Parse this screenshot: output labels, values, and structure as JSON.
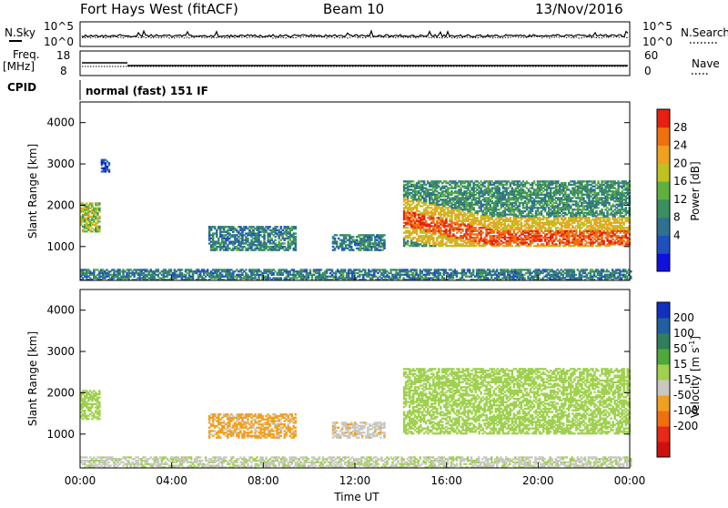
{
  "header": {
    "station": "Fort Hays West (fitACF)",
    "beam": "Beam 10",
    "date": "13/Nov/2016"
  },
  "top_panels": {
    "nsky_label": "N.Sky",
    "nsearch_label": "N.Search",
    "nsky_ticks": [
      "10^5",
      "10^0"
    ],
    "nsearch_ticks": [
      "10^5",
      "10^0"
    ],
    "freq_label": "Freq.",
    "freq_unit": "[MHz]",
    "freq_ticks": [
      "18",
      "8"
    ],
    "nave_label": "Nave",
    "nave_ticks": [
      "60",
      "0"
    ],
    "cpid_label": "CPID",
    "cpid_text": "normal (fast) 151 IF"
  },
  "axes": {
    "xlabel": "Time UT",
    "ylabel": "Slant Range [km]",
    "xticks": [
      "00:00",
      "04:00",
      "08:00",
      "12:00",
      "16:00",
      "20:00",
      "00:00"
    ],
    "xlim_hours": [
      0,
      24
    ],
    "ylim_km": [
      180,
      4500
    ],
    "yticks": [
      1000,
      2000,
      3000,
      4000
    ]
  },
  "power_scale": {
    "label": "Power [dB]",
    "ticks": [
      "28",
      "24",
      "20",
      "16",
      "12",
      "8",
      "4"
    ],
    "range": [
      0,
      32
    ],
    "colors": [
      "#1010e0",
      "#2050c0",
      "#307090",
      "#3a9060",
      "#60b040",
      "#c0c020",
      "#f0a020",
      "#f07010",
      "#e82010"
    ]
  },
  "velocity_scale": {
    "label": "Velocity [m s",
    "label_sup": "-1",
    "label_end": "]",
    "ticks": [
      "200",
      "100",
      "50",
      "15",
      "-15",
      "-50",
      "-100",
      "-200"
    ],
    "colors": [
      "#1030c0",
      "#2060a0",
      "#2f7f5a",
      "#4fa83a",
      "#a0d050",
      "#c8c8c0",
      "#f0a020",
      "#f07010",
      "#e82818",
      "#d01010"
    ]
  },
  "chart_data": [
    {
      "type": "heatmap",
      "title": "Power",
      "xlabel": "Time UT",
      "ylabel": "Slant Range [km]",
      "xlim": [
        0,
        24
      ],
      "ylim": [
        180,
        4500
      ],
      "colorbar": "Power [dB]",
      "regions": [
        {
          "t": [
            0.0,
            0.8
          ],
          "r": [
            1350,
            2050
          ],
          "level_db": 18
        },
        {
          "t": [
            0.9,
            1.3
          ],
          "r": [
            2800,
            3100
          ],
          "level_db": 6
        },
        {
          "t": [
            5.6,
            9.4
          ],
          "r": [
            900,
            1500
          ],
          "level_db": 10
        },
        {
          "t": [
            11.0,
            13.3
          ],
          "r": [
            900,
            1300
          ],
          "level_db": 10
        },
        {
          "t": [
            14.1,
            24.0
          ],
          "r": [
            1000,
            2600
          ],
          "level_db": 26
        },
        {
          "t": [
            0.0,
            24.0
          ],
          "r": [
            180,
            450
          ],
          "level_db": 10
        }
      ]
    },
    {
      "type": "heatmap",
      "title": "Velocity",
      "xlabel": "Time UT",
      "ylabel": "Slant Range [km]",
      "xlim": [
        0,
        24
      ],
      "ylim": [
        180,
        4500
      ],
      "colorbar": "Velocity [m s-1]",
      "regions": [
        {
          "t": [
            0.0,
            0.8
          ],
          "r": [
            1350,
            2050
          ],
          "velocity": 0
        },
        {
          "t": [
            5.6,
            9.4
          ],
          "r": [
            900,
            1500
          ],
          "velocity": -60
        },
        {
          "t": [
            11.0,
            13.3
          ],
          "r": [
            900,
            1300
          ],
          "velocity": -40
        },
        {
          "t": [
            14.1,
            24.0
          ],
          "r": [
            1000,
            2600
          ],
          "velocity": 0
        },
        {
          "t": [
            0.0,
            24.0
          ],
          "r": [
            180,
            450
          ],
          "velocity": -20
        }
      ]
    }
  ]
}
